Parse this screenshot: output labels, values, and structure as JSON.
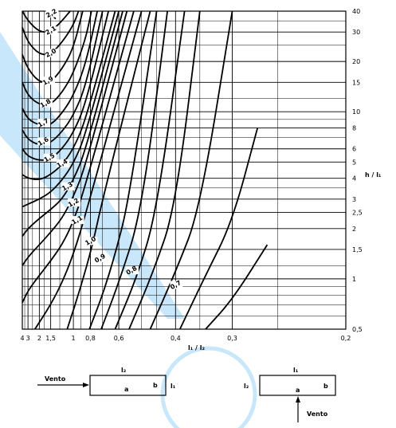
{
  "chart_data": {
    "type": "line",
    "xlabel": "l₁ / l₂",
    "ylabel": "h / l₁",
    "x_scale": "reciprocal",
    "y_scale": "log",
    "xlim": [
      4,
      0.2
    ],
    "ylim": [
      0.5,
      40
    ],
    "x_ticks": [
      "4",
      "3",
      "2",
      "1,5",
      "1",
      "0,8",
      "0,6",
      "0,4",
      "0,3",
      "0,2"
    ],
    "x_tick_values": [
      4,
      3,
      2,
      1.5,
      1,
      0.8,
      0.6,
      0.4,
      0.3,
      0.2
    ],
    "y_ticks": [
      "0,5",
      "1",
      "1,5",
      "2",
      "2,5",
      "3",
      "4",
      "5",
      "6",
      "8",
      "10",
      "15",
      "20",
      "30",
      "40"
    ],
    "y_tick_values": [
      0.5,
      1,
      1.5,
      2,
      2.5,
      3,
      4,
      5,
      6,
      8,
      10,
      15,
      20,
      30,
      40
    ],
    "grid": true,
    "series": [
      {
        "name": "2,2",
        "points": [
          [
            1.6,
            40
          ],
          [
            1.35,
            36
          ]
        ]
      },
      {
        "name": "2,1",
        "points": [
          [
            4,
            40
          ],
          [
            3,
            35
          ],
          [
            2,
            30
          ],
          [
            1.5,
            30
          ],
          [
            1.2,
            35
          ],
          [
            1.05,
            40
          ]
        ]
      },
      {
        "name": "2,0",
        "points": [
          [
            4,
            32
          ],
          [
            3,
            26
          ],
          [
            2,
            22
          ],
          [
            1.5,
            22
          ],
          [
            1.2,
            26
          ],
          [
            1,
            33
          ],
          [
            0.93,
            40
          ]
        ]
      },
      {
        "name": "1,9",
        "points": [
          [
            4,
            22
          ],
          [
            3,
            18
          ],
          [
            2,
            15
          ],
          [
            1.5,
            15
          ],
          [
            1.2,
            18
          ],
          [
            1,
            24
          ],
          [
            0.88,
            40
          ]
        ]
      },
      {
        "name": "1,8",
        "points": [
          [
            4,
            15
          ],
          [
            3,
            12.5
          ],
          [
            2,
            11
          ],
          [
            1.5,
            11
          ],
          [
            1.2,
            13
          ],
          [
            1,
            17
          ],
          [
            0.85,
            27
          ],
          [
            0.79,
            40
          ]
        ]
      },
      {
        "name": "1,7",
        "points": [
          [
            4,
            10.5
          ],
          [
            3,
            9
          ],
          [
            2,
            8.3
          ],
          [
            1.5,
            8.3
          ],
          [
            1.2,
            9.8
          ],
          [
            1,
            12.5
          ],
          [
            0.85,
            19
          ],
          [
            0.74,
            40
          ]
        ]
      },
      {
        "name": "1,6",
        "points": [
          [
            4,
            7.8
          ],
          [
            3,
            6.8
          ],
          [
            2,
            6.3
          ],
          [
            1.5,
            6.5
          ],
          [
            1.2,
            7.6
          ],
          [
            1,
            9.5
          ],
          [
            0.85,
            14
          ],
          [
            0.7,
            40
          ]
        ]
      },
      {
        "name": "1,5",
        "points": [
          [
            4,
            6
          ],
          [
            3,
            5.4
          ],
          [
            2,
            5.1
          ],
          [
            1.5,
            5.2
          ],
          [
            1.2,
            6
          ],
          [
            1,
            7.5
          ],
          [
            0.85,
            11
          ],
          [
            0.66,
            40
          ]
        ]
      },
      {
        "name": "1,4",
        "points": [
          [
            4,
            4.2
          ],
          [
            3,
            4
          ],
          [
            2,
            3.9
          ],
          [
            1.5,
            4.2
          ],
          [
            1.2,
            4.8
          ],
          [
            1,
            6
          ],
          [
            0.85,
            8.8
          ],
          [
            0.62,
            40
          ]
        ]
      },
      {
        "name": "1,3",
        "points": [
          [
            4,
            2.7
          ],
          [
            3,
            2.8
          ],
          [
            2,
            3
          ],
          [
            1.5,
            3.3
          ],
          [
            1.2,
            3.9
          ],
          [
            1,
            4.9
          ],
          [
            0.85,
            7.2
          ],
          [
            0.6,
            40
          ]
        ]
      },
      {
        "name": "1,2",
        "points": [
          [
            4,
            1.8
          ],
          [
            3,
            2
          ],
          [
            2,
            2.3
          ],
          [
            1.5,
            2.6
          ],
          [
            1.2,
            3
          ],
          [
            1,
            3.9
          ],
          [
            0.85,
            5.8
          ],
          [
            0.58,
            40
          ]
        ]
      },
      {
        "name": "1,1",
        "points": [
          [
            4,
            1.2
          ],
          [
            3,
            1.35
          ],
          [
            2,
            1.6
          ],
          [
            1.5,
            1.9
          ],
          [
            1.2,
            2.3
          ],
          [
            1,
            3.1
          ],
          [
            0.85,
            4.7
          ],
          [
            0.56,
            40
          ]
        ]
      },
      {
        "name": "1,0",
        "points": [
          [
            4,
            0.72
          ],
          [
            3,
            0.85
          ],
          [
            2,
            1.05
          ],
          [
            1.5,
            1.28
          ],
          [
            1.2,
            1.6
          ],
          [
            1,
            2.2
          ],
          [
            0.85,
            3.6
          ],
          [
            0.53,
            40
          ]
        ]
      },
      {
        "name": "0,9",
        "points": [
          [
            2.3,
            0.5
          ],
          [
            1.5,
            0.7
          ],
          [
            1.2,
            0.95
          ],
          [
            1,
            1.4
          ],
          [
            0.85,
            2.4
          ],
          [
            0.5,
            40
          ]
        ]
      },
      {
        "name": "0,8",
        "points": [
          [
            1.1,
            0.5
          ],
          [
            0.9,
            0.9
          ],
          [
            0.78,
            1.6
          ],
          [
            0.7,
            3
          ],
          [
            0.47,
            40
          ]
        ]
      },
      {
        "name": "0,7",
        "points": [
          [
            0.81,
            0.5
          ],
          [
            0.7,
            0.8
          ],
          [
            0.62,
            1.4
          ],
          [
            0.55,
            3
          ],
          [
            0.45,
            40
          ]
        ]
      },
      {
        "name": "",
        "points": [
          [
            0.71,
            0.5
          ],
          [
            0.6,
            0.95
          ],
          [
            0.5,
            2.5
          ],
          [
            0.42,
            40
          ]
        ]
      },
      {
        "name": "",
        "points": [
          [
            0.62,
            0.5
          ],
          [
            0.52,
            1
          ],
          [
            0.45,
            2.5
          ],
          [
            0.38,
            40
          ]
        ]
      },
      {
        "name": "",
        "points": [
          [
            0.55,
            0.5
          ],
          [
            0.46,
            1.1
          ],
          [
            0.4,
            2.7
          ],
          [
            0.35,
            40
          ]
        ]
      },
      {
        "name": "",
        "points": [
          [
            0.47,
            0.5
          ],
          [
            0.4,
            1.1
          ],
          [
            0.35,
            2.6
          ],
          [
            0.3,
            40
          ]
        ]
      },
      {
        "name": "",
        "points": [
          [
            0.39,
            0.5
          ],
          [
            0.34,
            1.05
          ],
          [
            0.3,
            2.2
          ],
          [
            0.27,
            8
          ]
        ]
      },
      {
        "name": "",
        "points": [
          [
            0.34,
            0.5
          ],
          [
            0.3,
            0.75
          ],
          [
            0.26,
            1.6
          ]
        ]
      }
    ],
    "label_positions": [
      {
        "text": "2,2",
        "x": 1.48,
        "y": 38
      },
      {
        "text": "2,1",
        "x": 1.5,
        "y": 30
      },
      {
        "text": "2,0",
        "x": 1.5,
        "y": 22
      },
      {
        "text": "1,9",
        "x": 1.6,
        "y": 15
      },
      {
        "text": "1,8",
        "x": 1.7,
        "y": 11
      },
      {
        "text": "1,7",
        "x": 1.8,
        "y": 8.4
      },
      {
        "text": "1,6",
        "x": 1.8,
        "y": 6.5
      },
      {
        "text": "1,5",
        "x": 1.55,
        "y": 5.2
      },
      {
        "text": "1,4",
        "x": 1.2,
        "y": 4.8
      },
      {
        "text": "1,3",
        "x": 1.1,
        "y": 3.5
      },
      {
        "text": "1,2",
        "x": 1.0,
        "y": 2.8
      },
      {
        "text": "1,1",
        "x": 0.95,
        "y": 2.2
      },
      {
        "text": "1,0",
        "x": 0.8,
        "y": 1.65
      },
      {
        "text": "0,9",
        "x": 0.72,
        "y": 1.3
      },
      {
        "text": "0,8",
        "x": 0.54,
        "y": 1.1
      },
      {
        "text": "0,7",
        "x": 0.4,
        "y": 0.9
      }
    ]
  },
  "diagrams": {
    "left": {
      "wind": "Vento",
      "top": "l₂",
      "right": "l₁",
      "a": "a",
      "b": "b"
    },
    "right": {
      "wind": "Vento",
      "top": "l₁",
      "left": "l₂",
      "a": "a",
      "b": "b"
    }
  },
  "colors": {
    "watermark": "#c8e7fb",
    "ink": "#000000"
  }
}
